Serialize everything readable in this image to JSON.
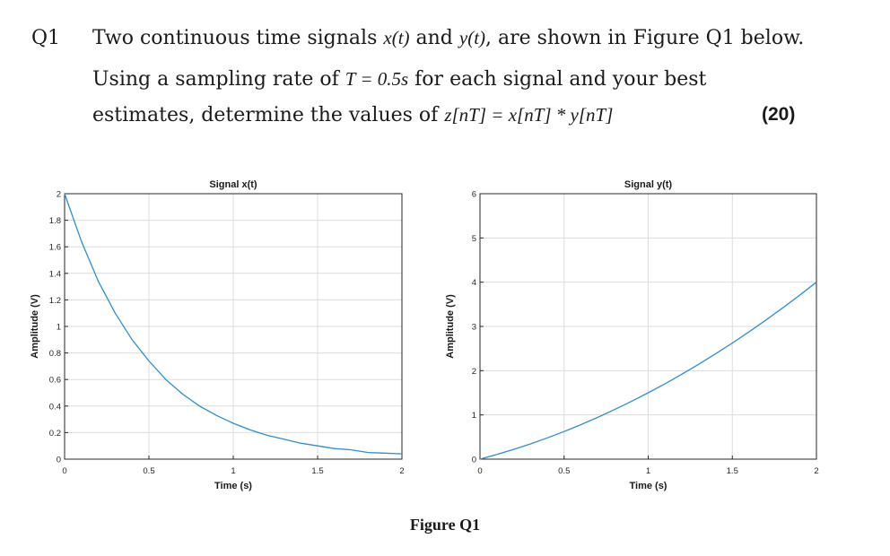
{
  "question": {
    "number": "Q1",
    "line1_pre": "Two continuous time signals ",
    "line1_x": "x(t)",
    "line1_and": " and ",
    "line1_y": "y(t)",
    "line1_post": ", are shown in Figure Q1 below.",
    "line2_pre": "Using a sampling rate of ",
    "line2_math": "T = 0.5s",
    "line2_post": " for each signal and your best",
    "line3_pre": "estimates, determine the values of ",
    "line3_math": "z[nT] = x[nT] * y[nT]",
    "marks": "(20)"
  },
  "figure_caption": "Figure Q1",
  "chart_data": [
    {
      "type": "line",
      "title": "Signal x(t)",
      "xlabel": "Time (s)",
      "ylabel": "Amplitude (V)",
      "xlim": [
        0,
        2
      ],
      "ylim": [
        0,
        2
      ],
      "xticks": [
        0,
        0.5,
        1,
        1.5,
        2
      ],
      "xtick_labels": [
        "0",
        "0.5",
        "1",
        "1.5",
        "2"
      ],
      "yticks": [
        0,
        0.2,
        0.4,
        0.6,
        0.8,
        1,
        1.2,
        1.4,
        1.6,
        1.8,
        2
      ],
      "ytick_labels": [
        "0",
        "0.2",
        "0.4",
        "0.6",
        "0.8",
        "1",
        "1.2",
        "1.4",
        "1.6",
        "1.8",
        "2"
      ],
      "grid": true,
      "line_color": "#2b8fd0",
      "x": [
        0,
        0.1,
        0.2,
        0.3,
        0.4,
        0.5,
        0.6,
        0.7,
        0.8,
        0.9,
        1.0,
        1.1,
        1.2,
        1.3,
        1.4,
        1.5,
        1.6,
        1.7,
        1.8,
        1.9,
        2.0
      ],
      "y": [
        2.0,
        1.64,
        1.34,
        1.1,
        0.9,
        0.74,
        0.6,
        0.49,
        0.4,
        0.33,
        0.27,
        0.22,
        0.18,
        0.15,
        0.12,
        0.1,
        0.08,
        0.07,
        0.05,
        0.045,
        0.04
      ]
    },
    {
      "type": "line",
      "title": "Signal y(t)",
      "xlabel": "Time (s)",
      "ylabel": "Amplitude (V)",
      "xlim": [
        0,
        2
      ],
      "ylim": [
        0,
        6
      ],
      "xticks": [
        0,
        0.5,
        1,
        1.5,
        2
      ],
      "xtick_labels": [
        "0",
        "0.5",
        "1",
        "1.5",
        "2"
      ],
      "yticks": [
        0,
        1,
        2,
        3,
        4,
        5,
        6
      ],
      "ytick_labels": [
        "0",
        "1",
        "2",
        "3",
        "4",
        "5",
        "6"
      ],
      "grid": true,
      "line_color": "#2b8fd0",
      "x": [
        0,
        0.1,
        0.2,
        0.3,
        0.4,
        0.5,
        0.6,
        0.7,
        0.8,
        0.9,
        1.0,
        1.1,
        1.2,
        1.3,
        1.4,
        1.5,
        1.6,
        1.7,
        1.8,
        1.9,
        2.0
      ],
      "y": [
        0,
        0.105,
        0.22,
        0.345,
        0.48,
        0.625,
        0.78,
        0.945,
        1.12,
        1.305,
        1.5,
        1.705,
        1.92,
        2.145,
        2.38,
        2.625,
        2.88,
        3.145,
        3.42,
        3.705,
        4.0
      ]
    }
  ]
}
